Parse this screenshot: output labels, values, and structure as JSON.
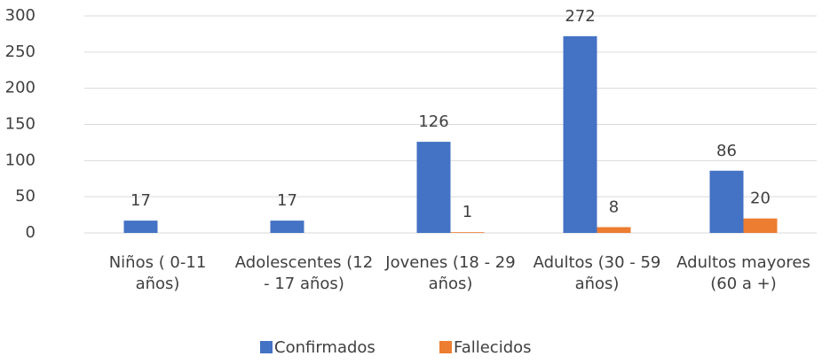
{
  "chart_data": {
    "type": "bar",
    "categories": [
      "Niños ( 0-11 años)",
      "Adolescentes (12 - 17 años)",
      "Jovenes (18 - 29 años)",
      "Adultos (30 - 59 años)",
      "Adultos mayores (60 a +)"
    ],
    "series": [
      {
        "name": "Confirmados",
        "color": "#4472c4",
        "values": [
          17,
          17,
          126,
          272,
          86
        ]
      },
      {
        "name": "Fallecidos",
        "color": "#ed7d31",
        "values": [
          null,
          null,
          1,
          8,
          20
        ]
      }
    ],
    "ylim": [
      0,
      300
    ],
    "yticks": [
      0,
      50,
      100,
      150,
      200,
      250,
      300
    ],
    "grid": true,
    "legend": "bottom"
  }
}
